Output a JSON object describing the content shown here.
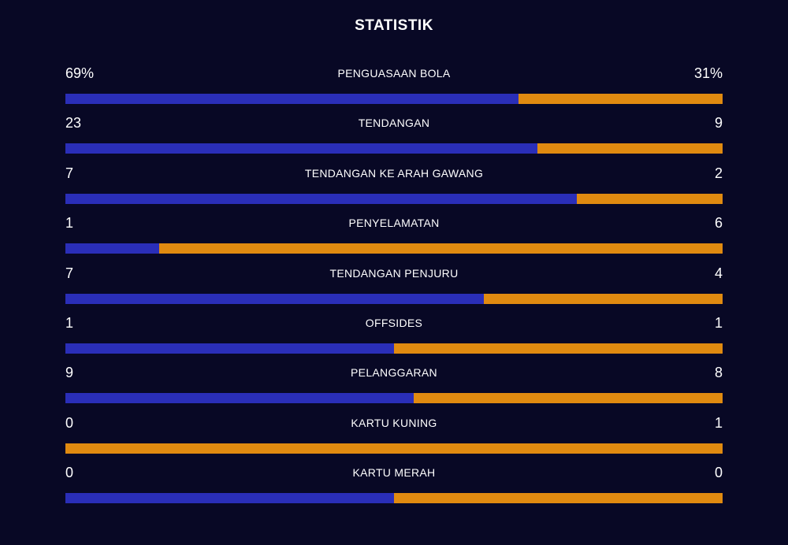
{
  "title": "STATISTIK",
  "colors": {
    "home": "#2a2eb8",
    "away": "#e08a10",
    "background": "#080825"
  },
  "stats": [
    {
      "label": "PENGUASAAN BOLA",
      "home": "69%",
      "away": "31%",
      "home_share": 0.69
    },
    {
      "label": "TENDANGAN",
      "home": "23",
      "away": "9",
      "home_share": 0.7188
    },
    {
      "label": "TENDANGAN KE ARAH GAWANG",
      "home": "7",
      "away": "2",
      "home_share": 0.7778
    },
    {
      "label": "PENYELAMATAN",
      "home": "1",
      "away": "6",
      "home_share": 0.1429
    },
    {
      "label": "TENDANGAN PENJURU",
      "home": "7",
      "away": "4",
      "home_share": 0.6364
    },
    {
      "label": "OFFSIDES",
      "home": "1",
      "away": "1",
      "home_share": 0.5
    },
    {
      "label": "PELANGGARAN",
      "home": "9",
      "away": "8",
      "home_share": 0.5294
    },
    {
      "label": "KARTU KUNING",
      "home": "0",
      "away": "1",
      "home_share": 0
    },
    {
      "label": "KARTU MERAH",
      "home": "0",
      "away": "0",
      "home_share": 0.5
    }
  ]
}
